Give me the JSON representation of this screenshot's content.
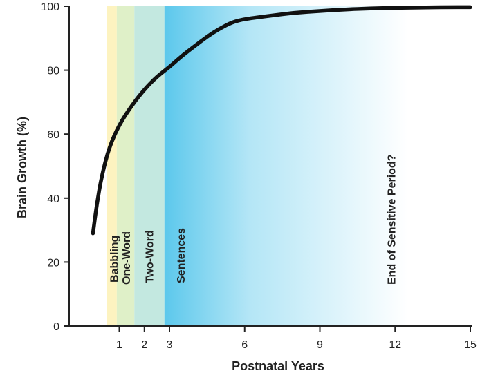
{
  "chart_data": {
    "type": "line",
    "xlabel": "Postnatal Years",
    "ylabel": "Brain Growth (%)",
    "xlim": [
      -1,
      15
    ],
    "ylim": [
      0,
      100
    ],
    "x_ticks": [
      1,
      2,
      3,
      6,
      9,
      12,
      15
    ],
    "y_ticks": [
      0,
      20,
      40,
      60,
      80,
      100
    ],
    "grid": false,
    "series": [
      {
        "color": "#111111",
        "x": [
          -0.05,
          0.1,
          0.3,
          0.6,
          1.0,
          1.5,
          2.0,
          2.5,
          3.0,
          3.5,
          4.0,
          4.5,
          5.0,
          5.5,
          6.0,
          7.0,
          8.0,
          9.0,
          10.0,
          11.0,
          12.0,
          13.0,
          14.0,
          15.0
        ],
        "y": [
          29,
          38,
          47,
          56,
          63,
          69,
          74,
          78,
          81,
          84.5,
          87.5,
          90.5,
          93,
          95,
          96,
          97,
          98,
          98.5,
          99,
          99.3,
          99.5,
          99.6,
          99.7,
          99.7
        ]
      }
    ],
    "bands": [
      {
        "label": "Babbling",
        "start": 0.5,
        "end": 0.9,
        "color": "#fdf3c0"
      },
      {
        "label": "One-Word",
        "start": 0.9,
        "end": 1.6,
        "color": "#dff0c8"
      },
      {
        "label": "Two-Word",
        "start": 1.6,
        "end": 2.8,
        "color": "#c3e8e0"
      },
      {
        "label": "Sentences",
        "start": 2.8,
        "end": 12.5,
        "color": "#5cc8ec"
      },
      {
        "label": "End of Sensitive Period?",
        "x": 12
      }
    ]
  }
}
